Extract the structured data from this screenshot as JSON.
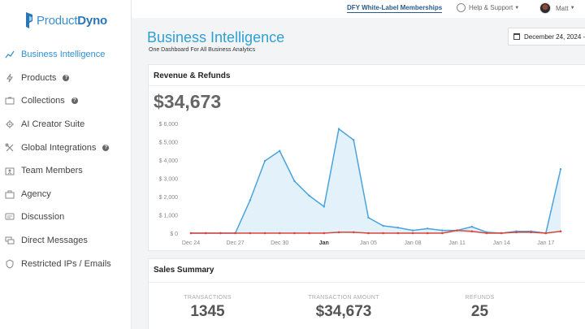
{
  "brand": {
    "name_light": "Product",
    "name_bold": "Dyno"
  },
  "topbar": {
    "dfy_link": "DFY White-Label Memberships",
    "help_support": "Help & Support",
    "user_name": "Matt"
  },
  "sidebar": {
    "items": [
      {
        "label": "Business Intelligence",
        "icon": "chart-line-icon",
        "active": true,
        "help": false
      },
      {
        "label": "Products",
        "icon": "bolt-icon",
        "active": false,
        "help": true
      },
      {
        "label": "Collections",
        "icon": "folder-icon",
        "active": false,
        "help": true
      },
      {
        "label": "AI Creator Suite",
        "icon": "gear-icon",
        "active": false,
        "help": false
      },
      {
        "label": "Global Integrations",
        "icon": "tools-icon",
        "active": false,
        "help": true
      },
      {
        "label": "Team Members",
        "icon": "team-icon",
        "active": false,
        "help": false
      },
      {
        "label": "Agency",
        "icon": "briefcase-icon",
        "active": false,
        "help": false
      },
      {
        "label": "Discussion",
        "icon": "chat-icon",
        "active": false,
        "help": false
      },
      {
        "label": "Direct Messages",
        "icon": "messages-icon",
        "active": false,
        "help": false
      },
      {
        "label": "Restricted IPs / Emails",
        "icon": "shield-icon",
        "active": false,
        "help": false
      }
    ],
    "help_glyph": "?"
  },
  "header": {
    "title": "Business Intelligence",
    "subtitle": "One Dashboard For All Business Analytics",
    "date_range": "December 24, 2024 -"
  },
  "revenue": {
    "title": "Revenue & Refunds",
    "total": "$34,673"
  },
  "chart_data": {
    "type": "area",
    "title": "",
    "xlabel": "",
    "ylabel": "",
    "ylim": [
      0,
      6000
    ],
    "yticks": [
      "$ 0",
      "$ 1,000",
      "$ 2,000",
      "$ 3,000",
      "$ 4,000",
      "$ 5,000",
      "$ 6,000"
    ],
    "x_tick_labels": [
      "Dec 24",
      "Dec 27",
      "Dec 30",
      "Jan",
      "Jan 05",
      "Jan 08",
      "Jan 11",
      "Jan 14",
      "Jan 17"
    ],
    "x_tick_bold": [
      "Jan"
    ],
    "grid": false,
    "series": [
      {
        "color": "#4ba3dc",
        "fill": "#e3f1fb",
        "values": [
          0,
          0,
          0,
          0,
          1800,
          3950,
          4500,
          2850,
          2050,
          1450,
          5700,
          5100,
          850,
          400,
          300,
          150,
          250,
          150,
          150,
          350,
          50,
          0,
          100,
          100,
          0,
          3500
        ]
      },
      {
        "color": "#d9453a",
        "values": [
          0,
          0,
          0,
          0,
          0,
          0,
          0,
          0,
          0,
          0,
          50,
          50,
          0,
          0,
          0,
          0,
          0,
          0,
          150,
          100,
          0,
          0,
          50,
          50,
          0,
          100
        ]
      }
    ],
    "x_start_index": 0,
    "tick_indices": [
      0,
      3,
      6,
      9,
      12,
      15,
      18,
      21,
      24
    ]
  },
  "sales": {
    "title": "Sales Summary",
    "stats": [
      {
        "label": "TRANSACTIONS",
        "value": "1345"
      },
      {
        "label": "TRANSACTION AMOUNT",
        "value": "$34,673"
      },
      {
        "label": "REFUNDS",
        "value": "25"
      }
    ]
  },
  "colors": {
    "accent": "#2f9fd4",
    "area_line": "#4ba3dc",
    "refund_line": "#d9453a"
  }
}
